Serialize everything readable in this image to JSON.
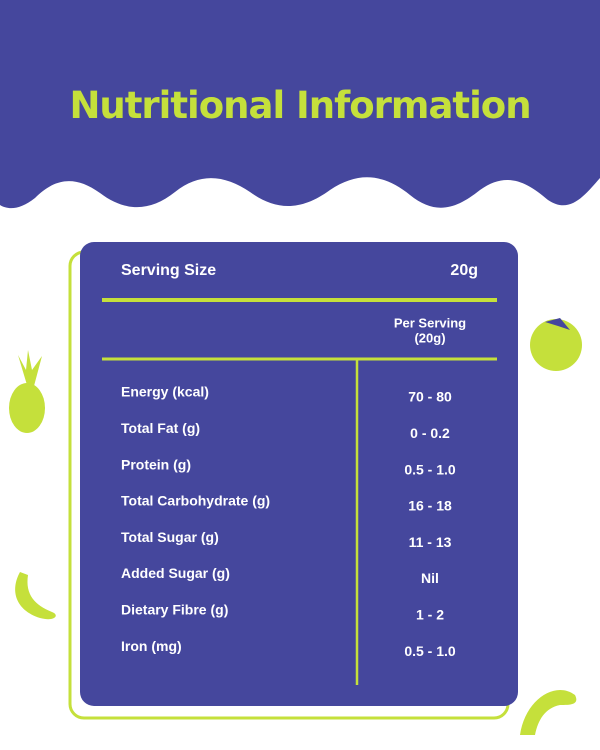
{
  "header": {
    "title": "Nutritional Information"
  },
  "serving": {
    "label": "Serving Size",
    "value": "20g"
  },
  "table": {
    "header": [
      "Per Serving",
      "(20g)"
    ],
    "rows": [
      [
        "Energy (kcal)",
        "70 - 80"
      ],
      [
        "Total Fat (g)",
        "0 - 0.2"
      ],
      [
        "Protein (g)",
        "0.5 - 1.0"
      ],
      [
        "Total Carbohydrate (g)",
        "16 - 18"
      ],
      [
        "Total Sugar (g)",
        "11 - 13"
      ],
      [
        "Added Sugar (g)",
        "Nil"
      ],
      [
        "Dietary Fibre (g)",
        "1 - 2"
      ],
      [
        "Iron (mg)",
        "0.5 - 1.0"
      ]
    ]
  }
}
